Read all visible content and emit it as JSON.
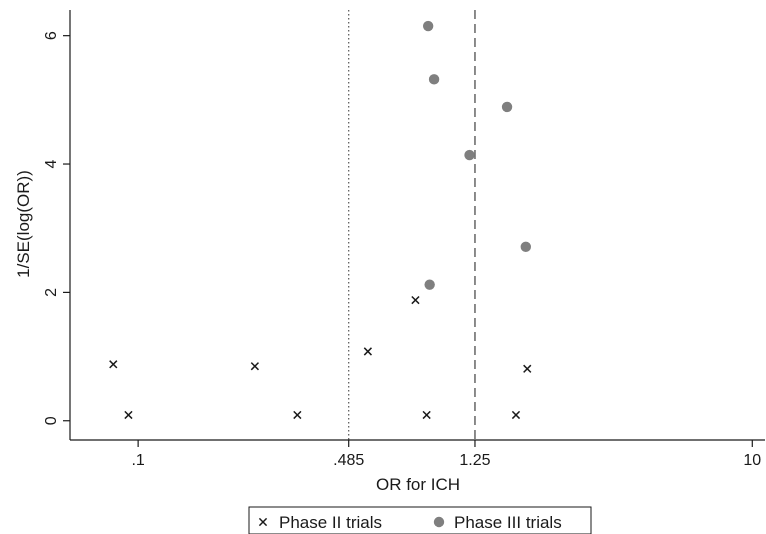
{
  "chart_data": {
    "type": "scatter",
    "title": "",
    "xlabel": "OR for ICH",
    "ylabel": "1/SE(log(OR))",
    "x_scale": "log",
    "xlim": [
      0.06,
      11
    ],
    "ylim": [
      -0.3,
      6.4
    ],
    "x_ticks": [
      {
        "value": 0.1,
        "label": ".1"
      },
      {
        "value": 0.485,
        "label": ".485"
      },
      {
        "value": 1.25,
        "label": "1.25"
      },
      {
        "value": 10,
        "label": "10"
      }
    ],
    "y_ticks": [
      {
        "value": 0,
        "label": "0"
      },
      {
        "value": 2,
        "label": "2"
      },
      {
        "value": 4,
        "label": "4"
      },
      {
        "value": 6,
        "label": "6"
      }
    ],
    "reference_lines": [
      {
        "x": 0.485,
        "style": "dotted"
      },
      {
        "x": 1.25,
        "style": "dashed"
      }
    ],
    "grid": false,
    "legend_position": "bottom",
    "series": [
      {
        "name": "Phase II trials",
        "marker": "cross",
        "color": "#1a1a1a",
        "points": [
          {
            "x": 0.083,
            "y": 0.88
          },
          {
            "x": 0.093,
            "y": 0.09
          },
          {
            "x": 0.24,
            "y": 0.85
          },
          {
            "x": 0.33,
            "y": 0.09
          },
          {
            "x": 0.56,
            "y": 1.08
          },
          {
            "x": 0.8,
            "y": 1.88
          },
          {
            "x": 0.87,
            "y": 0.09
          },
          {
            "x": 1.7,
            "y": 0.09
          },
          {
            "x": 1.85,
            "y": 0.81
          }
        ]
      },
      {
        "name": "Phase III trials",
        "marker": "circle",
        "color": "#7f7f7f",
        "points": [
          {
            "x": 0.88,
            "y": 6.15
          },
          {
            "x": 0.92,
            "y": 5.32
          },
          {
            "x": 1.59,
            "y": 4.89
          },
          {
            "x": 1.2,
            "y": 4.14
          },
          {
            "x": 1.83,
            "y": 2.71
          },
          {
            "x": 0.89,
            "y": 2.12
          }
        ]
      }
    ]
  }
}
